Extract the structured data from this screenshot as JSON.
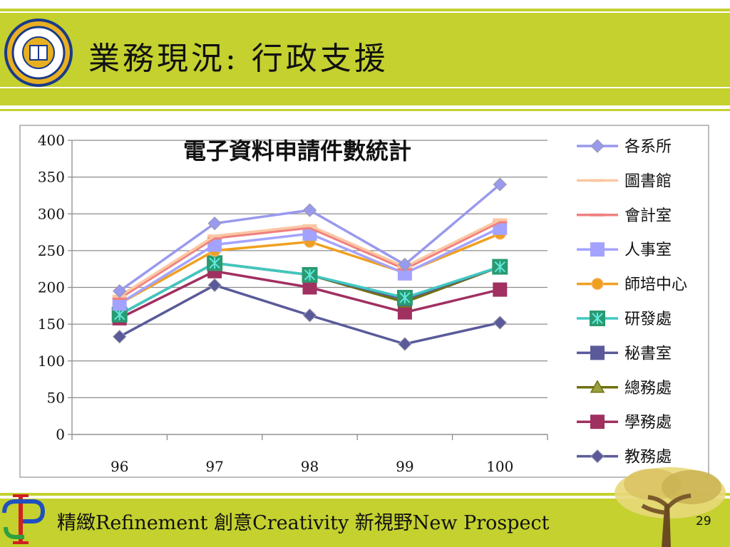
{
  "slide": {
    "title": "業務現況: 行政支援",
    "footer": "精緻Refinement  創意Creativity  新視野New Prospect",
    "page_number": "29"
  },
  "colors": {
    "band": "#c4d12f"
  },
  "chart_data": {
    "type": "line",
    "title": "電子資料申請件數統計",
    "xlabel": "",
    "ylabel": "",
    "categories": [
      "96",
      "97",
      "98",
      "99",
      "100"
    ],
    "ylim": [
      0,
      400
    ],
    "yticks": [
      0,
      50,
      100,
      150,
      200,
      250,
      300,
      350,
      400
    ],
    "grid": true,
    "legend_position": "right",
    "series": [
      {
        "name": "各系所",
        "values": [
          195,
          287,
          305,
          231,
          340
        ],
        "color": "#9999ee",
        "marker": "diamond"
      },
      {
        "name": "圖書館",
        "values": [
          188,
          270,
          284,
          228,
          292
        ],
        "color": "#fbc7a3",
        "marker": "dash"
      },
      {
        "name": "會計室",
        "values": [
          185,
          267,
          281,
          225,
          289
        ],
        "color": "#f08080",
        "marker": "dash"
      },
      {
        "name": "人事室",
        "values": [
          178,
          258,
          273,
          219,
          281
        ],
        "color": "#a3a3ff",
        "marker": "square"
      },
      {
        "name": "師培中心",
        "values": [
          178,
          250,
          262,
          220,
          273
        ],
        "color": "#f0a020",
        "marker": "circle"
      },
      {
        "name": "研發處",
        "values": [
          163,
          233,
          217,
          186,
          228
        ],
        "color": "#40c8c0",
        "marker": "x"
      },
      {
        "name": "秘書室",
        "values": [
          163,
          233,
          217,
          184,
          228
        ],
        "color": "#5a5a9a",
        "marker": "square"
      },
      {
        "name": "總務處",
        "values": [
          163,
          233,
          217,
          180,
          228
        ],
        "color": "#707010",
        "marker": "triangle"
      },
      {
        "name": "學務處",
        "values": [
          158,
          222,
          200,
          166,
          197
        ],
        "color": "#a03060",
        "marker": "square"
      },
      {
        "name": "教務處",
        "values": [
          133,
          203,
          162,
          123,
          152
        ],
        "color": "#5a5a9a",
        "marker": "diamond"
      }
    ]
  }
}
